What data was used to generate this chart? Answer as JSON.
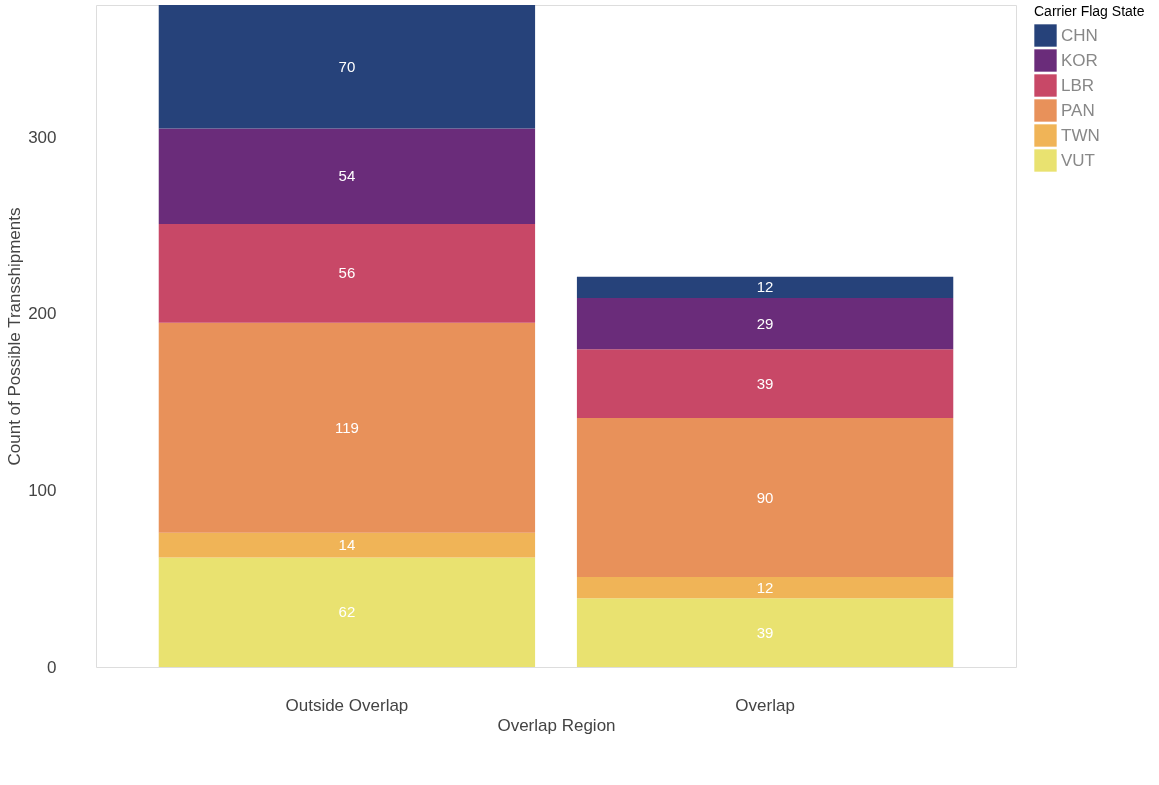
{
  "chart_data": {
    "type": "bar",
    "stacked": true,
    "xlabel": "Overlap Region",
    "ylabel": "Count of Possible Transshipments",
    "legend_title": "Carrier Flag State",
    "legend": "top right",
    "categories": [
      "Outside Overlap",
      "Overlap"
    ],
    "series": [
      {
        "name": "VUT",
        "color": "#e9e270",
        "values": [
          62,
          39
        ]
      },
      {
        "name": "TWN",
        "color": "#f0b457",
        "values": [
          14,
          12
        ]
      },
      {
        "name": "PAN",
        "color": "#e8915a",
        "values": [
          119,
          90
        ]
      },
      {
        "name": "LBR",
        "color": "#c84867",
        "values": [
          56,
          39
        ]
      },
      {
        "name": "KOR",
        "color": "#6a2c7a",
        "values": [
          54,
          29
        ]
      },
      {
        "name": "CHN",
        "color": "#26427a",
        "values": [
          70,
          12
        ]
      }
    ],
    "ylim": [
      0,
      375
    ],
    "yticks": [
      0,
      100,
      200,
      300
    ],
    "grid": false,
    "data_labels": true
  }
}
